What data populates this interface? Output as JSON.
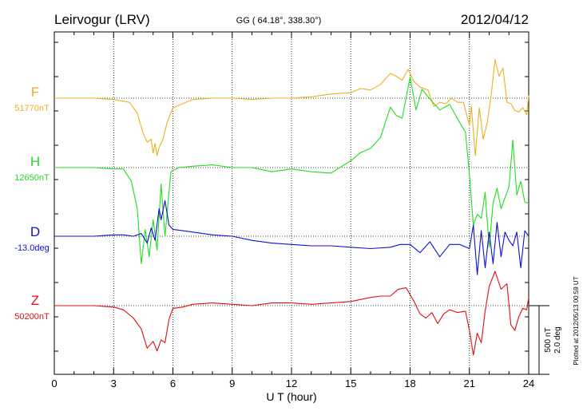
{
  "header": {
    "station": "Leirvogur (LRV)",
    "coords": "GG ( 64.18°, 338.30°)",
    "date": "2012/04/12"
  },
  "footer": {
    "plotted": "Plotted at 2012/05/13 00:59 UT"
  },
  "scale_bar": {
    "nt": "500 nT",
    "deg": "2.0 deg"
  },
  "colors": {
    "F": "#f0b020",
    "H": "#22dd22",
    "D": "#1010d0",
    "Z": "#e01010",
    "axis": "#000000",
    "grid": "#000000"
  },
  "chart_data": {
    "type": "line",
    "title": "",
    "xlabel": "U T (hour)",
    "ylabel": "",
    "xlim": [
      0,
      24
    ],
    "xticks": [
      0,
      3,
      6,
      9,
      12,
      15,
      18,
      21,
      24
    ],
    "grid": true,
    "legend": "left",
    "units_note": "offset from baseline in nT (D in nT-equivalent scale)",
    "series": [
      {
        "name": "F",
        "label": "F",
        "baseline": "51770nT",
        "x": [
          0,
          1,
          2,
          3,
          3.8,
          4.2,
          4.5,
          4.7,
          4.9,
          5.0,
          5.1,
          5.2,
          5.3,
          5.5,
          5.7,
          6.0,
          6.5,
          7,
          8,
          9,
          10,
          11,
          12,
          13,
          14,
          15,
          15.5,
          16,
          16.5,
          17,
          17.3,
          17.6,
          17.9,
          18.2,
          18.5,
          18.9,
          19.2,
          19.5,
          19.8,
          20.1,
          20.4,
          20.7,
          21.0,
          21.1,
          21.3,
          21.5,
          21.7,
          21.9,
          22.1,
          22.3,
          22.5,
          22.7,
          22.9,
          23.1,
          23.3,
          23.5,
          23.7,
          23.9,
          24
        ],
        "y": [
          0,
          0,
          0,
          -10,
          -30,
          -110,
          -260,
          -320,
          -300,
          -400,
          -330,
          -420,
          -360,
          -300,
          -180,
          -70,
          -40,
          -10,
          0,
          0,
          -10,
          0,
          0,
          10,
          30,
          40,
          70,
          60,
          100,
          180,
          160,
          130,
          210,
          120,
          80,
          60,
          -60,
          -30,
          -40,
          0,
          -30,
          -30,
          -200,
          -60,
          -420,
          -70,
          -300,
          -180,
          20,
          280,
          160,
          220,
          -30,
          -40,
          -90,
          -100,
          -70,
          -120,
          20
        ]
      },
      {
        "name": "H",
        "label": "H",
        "baseline": "12650nT",
        "x": [
          0,
          1,
          2,
          3,
          3.5,
          3.9,
          4.2,
          4.4,
          4.6,
          4.8,
          5.0,
          5.2,
          5.4,
          5.6,
          5.9,
          6.3,
          7,
          8,
          9,
          10,
          11,
          12,
          13,
          14,
          15,
          15.5,
          16,
          16.5,
          17,
          17.3,
          17.6,
          18.0,
          18.3,
          18.6,
          19.0,
          19.5,
          20.0,
          20.5,
          20.8,
          21.0,
          21.2,
          21.4,
          21.6,
          21.8,
          22.0,
          22.2,
          22.4,
          22.6,
          22.8,
          23.0,
          23.2,
          23.4,
          23.6,
          23.8,
          24
        ],
        "y": [
          0,
          0,
          0,
          -10,
          -10,
          -100,
          -300,
          -700,
          -450,
          -650,
          -380,
          -600,
          -120,
          -500,
          -30,
          0,
          10,
          20,
          0,
          0,
          -30,
          -10,
          -30,
          -40,
          50,
          110,
          140,
          220,
          440,
          380,
          360,
          660,
          420,
          570,
          500,
          420,
          460,
          330,
          260,
          -50,
          -420,
          -340,
          -370,
          -180,
          -580,
          -260,
          -150,
          -300,
          -220,
          -140,
          200,
          -200,
          -100,
          -250,
          -260
        ]
      },
      {
        "name": "D",
        "label": "D",
        "baseline": "-13.0deg",
        "x": [
          0,
          1,
          2,
          3,
          3.5,
          4.0,
          4.4,
          4.7,
          4.9,
          5.1,
          5.3,
          5.4,
          5.6,
          5.8,
          6.0,
          6.5,
          7,
          8,
          9,
          10,
          11,
          12,
          13,
          14,
          15,
          16,
          17,
          17.5,
          18,
          18.5,
          19,
          19.5,
          20,
          20.5,
          21,
          21.2,
          21.4,
          21.6,
          21.8,
          22.0,
          22.2,
          22.4,
          22.6,
          22.8,
          23.0,
          23.2,
          23.4,
          23.6,
          23.8,
          24
        ],
        "y": [
          0,
          0,
          0,
          10,
          10,
          0,
          20,
          -50,
          60,
          -30,
          200,
          120,
          260,
          80,
          50,
          40,
          30,
          10,
          0,
          -30,
          -50,
          -60,
          -70,
          -70,
          -80,
          -90,
          -80,
          -60,
          -60,
          -120,
          -40,
          -150,
          -60,
          -60,
          -90,
          80,
          -280,
          40,
          -230,
          30,
          -200,
          100,
          -150,
          30,
          -30,
          -70,
          30,
          -230,
          40,
          0
        ]
      },
      {
        "name": "Z",
        "label": "Z",
        "baseline": "50200nT",
        "x": [
          0,
          1,
          2,
          3,
          3.5,
          4.0,
          4.4,
          4.7,
          5.0,
          5.2,
          5.4,
          5.6,
          5.8,
          6.0,
          6.5,
          7,
          8,
          9,
          10,
          11,
          12,
          13,
          14,
          15,
          16,
          16.5,
          17,
          17.4,
          17.8,
          18.2,
          18.5,
          18.8,
          19.1,
          19.4,
          19.7,
          20.0,
          20.4,
          20.8,
          21.0,
          21.2,
          21.4,
          21.6,
          21.8,
          22.0,
          22.3,
          22.6,
          22.9,
          23.1,
          23.3,
          23.5,
          23.7,
          23.9,
          24
        ],
        "y": [
          0,
          0,
          0,
          -10,
          -30,
          -90,
          -170,
          -310,
          -260,
          -330,
          -250,
          -270,
          -100,
          -20,
          -10,
          10,
          20,
          10,
          0,
          20,
          20,
          10,
          20,
          30,
          60,
          70,
          70,
          120,
          130,
          30,
          -60,
          -90,
          -50,
          -130,
          -60,
          -30,
          -50,
          -40,
          -180,
          -360,
          -200,
          -270,
          -40,
          140,
          250,
          120,
          160,
          -140,
          -180,
          -80,
          -20,
          -30,
          60
        ]
      }
    ]
  }
}
